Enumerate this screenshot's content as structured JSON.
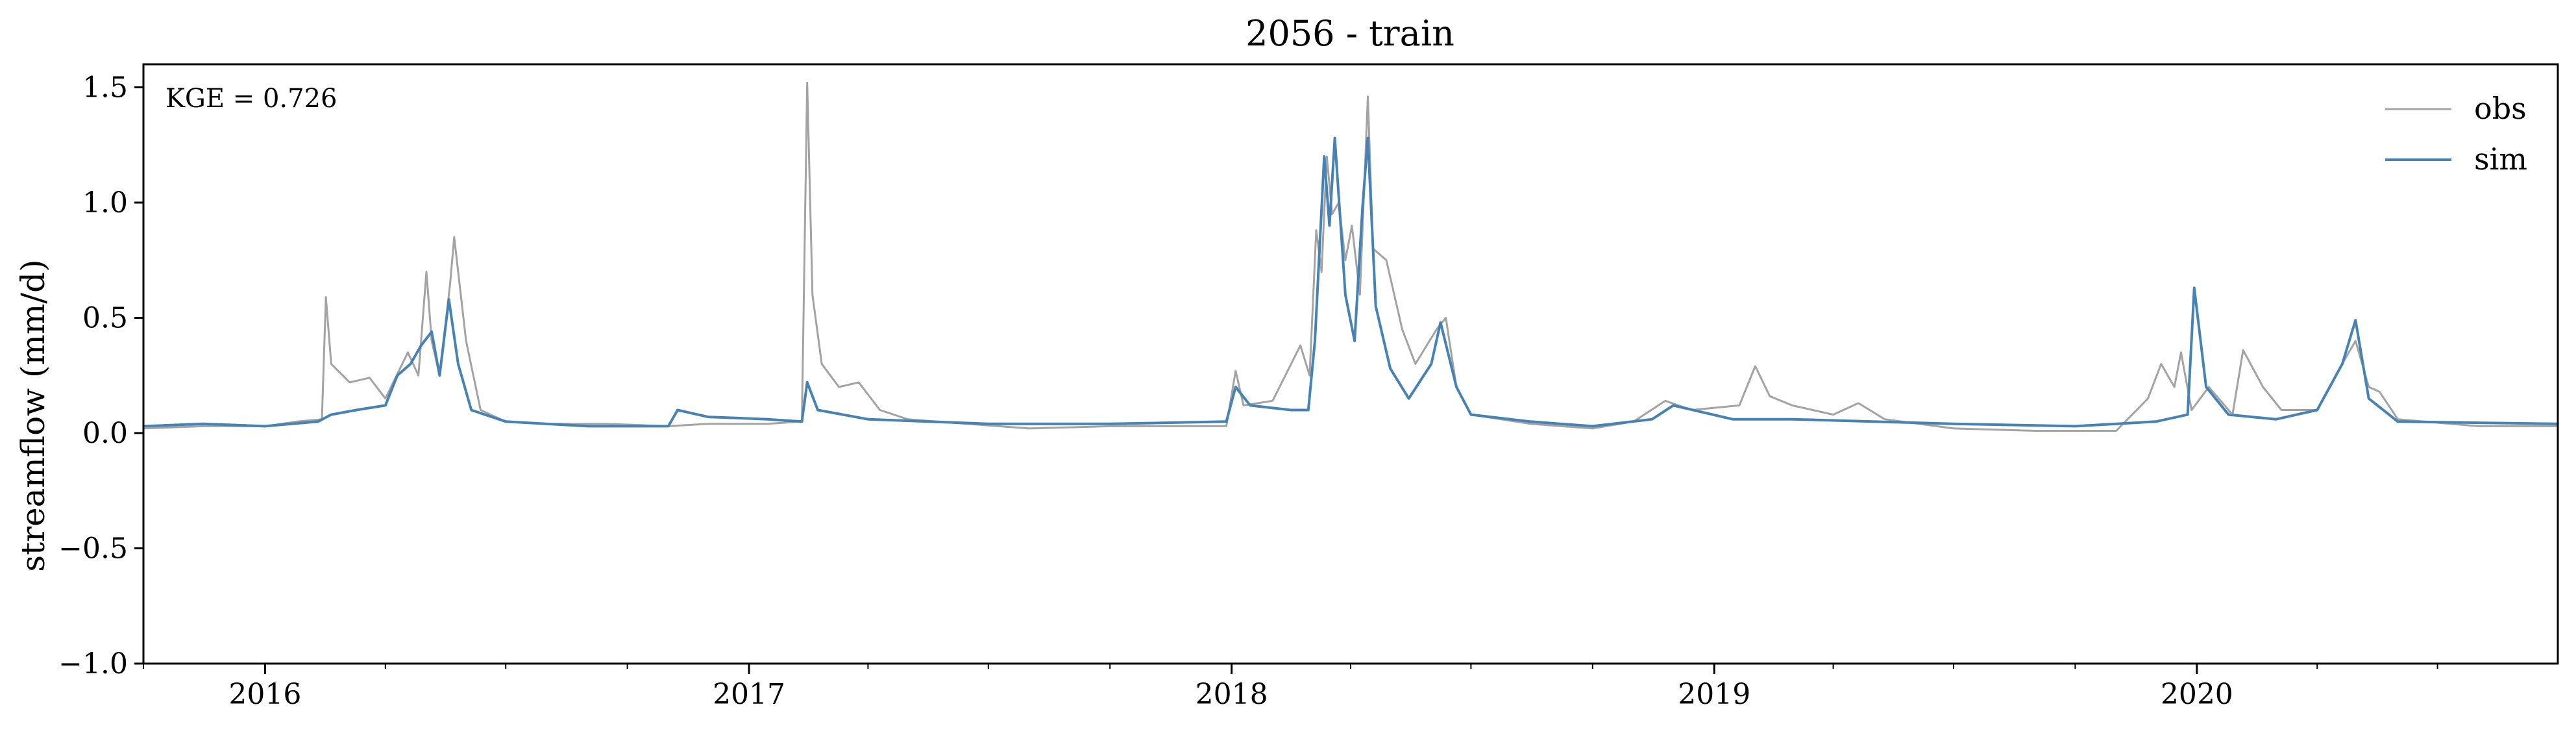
{
  "chart_data": {
    "type": "line",
    "title": "2056 - train",
    "xlabel": "",
    "ylabel": "streamflow (mm/d)",
    "ylim": [
      -1.0,
      1.6
    ],
    "xlim": [
      "2015-10-01",
      "2020-09-30"
    ],
    "y_ticks": [
      -1.0,
      -0.5,
      0.0,
      0.5,
      1.0,
      1.5
    ],
    "y_tick_labels": [
      "−1.0",
      "−0.5",
      "0.0",
      "0.5",
      "1.0",
      "1.5"
    ],
    "x_tick_labels": [
      "2016",
      "2017",
      "2018",
      "2019",
      "2020"
    ],
    "x_ticks": [
      "2016-01-01",
      "2017-01-01",
      "2018-01-01",
      "2019-01-01",
      "2020-01-01"
    ],
    "grid": false,
    "legend": {
      "placement": "top-right",
      "entries": [
        "obs",
        "sim"
      ]
    },
    "annotation": "KGE = 0.726",
    "series": [
      {
        "name": "obs",
        "color": "#a3a3a3",
        "points": [
          [
            "2015-10-01",
            0.02
          ],
          [
            "2015-11-15",
            0.03
          ],
          [
            "2016-01-01",
            0.03
          ],
          [
            "2016-01-25",
            0.05
          ],
          [
            "2016-02-13",
            0.06
          ],
          [
            "2016-02-16",
            0.59
          ],
          [
            "2016-02-20",
            0.3
          ],
          [
            "2016-03-05",
            0.22
          ],
          [
            "2016-03-20",
            0.24
          ],
          [
            "2016-04-01",
            0.15
          ],
          [
            "2016-04-18",
            0.35
          ],
          [
            "2016-04-26",
            0.25
          ],
          [
            "2016-05-02",
            0.7
          ],
          [
            "2016-05-06",
            0.4
          ],
          [
            "2016-05-12",
            0.25
          ],
          [
            "2016-05-20",
            0.65
          ],
          [
            "2016-05-23",
            0.85
          ],
          [
            "2016-06-01",
            0.4
          ],
          [
            "2016-06-12",
            0.1
          ],
          [
            "2016-07-01",
            0.05
          ],
          [
            "2016-08-01",
            0.04
          ],
          [
            "2016-09-15",
            0.04
          ],
          [
            "2016-11-01",
            0.03
          ],
          [
            "2016-12-01",
            0.04
          ],
          [
            "2017-01-15",
            0.04
          ],
          [
            "2017-02-10",
            0.05
          ],
          [
            "2017-02-14",
            1.52
          ],
          [
            "2017-02-18",
            0.6
          ],
          [
            "2017-02-25",
            0.3
          ],
          [
            "2017-03-10",
            0.2
          ],
          [
            "2017-03-25",
            0.22
          ],
          [
            "2017-04-10",
            0.1
          ],
          [
            "2017-05-01",
            0.06
          ],
          [
            "2017-06-15",
            0.04
          ],
          [
            "2017-08-01",
            0.02
          ],
          [
            "2017-10-01",
            0.03
          ],
          [
            "2017-12-28",
            0.03
          ],
          [
            "2018-01-04",
            0.27
          ],
          [
            "2018-01-10",
            0.12
          ],
          [
            "2018-02-01",
            0.14
          ],
          [
            "2018-02-15",
            0.3
          ],
          [
            "2018-02-22",
            0.38
          ],
          [
            "2018-03-01",
            0.25
          ],
          [
            "2018-03-06",
            0.88
          ],
          [
            "2018-03-10",
            0.7
          ],
          [
            "2018-03-14",
            1.2
          ],
          [
            "2018-03-18",
            0.95
          ],
          [
            "2018-03-23",
            1.0
          ],
          [
            "2018-03-28",
            0.75
          ],
          [
            "2018-04-02",
            0.9
          ],
          [
            "2018-04-08",
            0.6
          ],
          [
            "2018-04-14",
            1.46
          ],
          [
            "2018-04-18",
            0.8
          ],
          [
            "2018-04-28",
            0.75
          ],
          [
            "2018-05-10",
            0.45
          ],
          [
            "2018-05-20",
            0.3
          ],
          [
            "2018-06-05",
            0.45
          ],
          [
            "2018-06-12",
            0.5
          ],
          [
            "2018-06-20",
            0.2
          ],
          [
            "2018-07-01",
            0.08
          ],
          [
            "2018-08-15",
            0.04
          ],
          [
            "2018-10-01",
            0.02
          ],
          [
            "2018-11-01",
            0.05
          ],
          [
            "2018-11-25",
            0.14
          ],
          [
            "2018-12-15",
            0.1
          ],
          [
            "2019-01-20",
            0.12
          ],
          [
            "2019-02-01",
            0.29
          ],
          [
            "2019-02-12",
            0.16
          ],
          [
            "2019-03-01",
            0.12
          ],
          [
            "2019-04-01",
            0.08
          ],
          [
            "2019-04-20",
            0.13
          ],
          [
            "2019-05-10",
            0.06
          ],
          [
            "2019-07-01",
            0.02
          ],
          [
            "2019-09-01",
            0.01
          ],
          [
            "2019-11-01",
            0.01
          ],
          [
            "2019-11-25",
            0.15
          ],
          [
            "2019-12-05",
            0.3
          ],
          [
            "2019-12-15",
            0.2
          ],
          [
            "2019-12-20",
            0.35
          ],
          [
            "2019-12-28",
            0.1
          ],
          [
            "2020-01-10",
            0.2
          ],
          [
            "2020-01-28",
            0.08
          ],
          [
            "2020-02-05",
            0.36
          ],
          [
            "2020-02-20",
            0.2
          ],
          [
            "2020-03-05",
            0.1
          ],
          [
            "2020-04-01",
            0.1
          ],
          [
            "2020-04-20",
            0.3
          ],
          [
            "2020-04-30",
            0.4
          ],
          [
            "2020-05-10",
            0.2
          ],
          [
            "2020-05-18",
            0.18
          ],
          [
            "2020-06-01",
            0.06
          ],
          [
            "2020-08-01",
            0.03
          ],
          [
            "2020-09-30",
            0.03
          ]
        ]
      },
      {
        "name": "sim",
        "color": "#4682b4",
        "points": [
          [
            "2015-10-01",
            0.03
          ],
          [
            "2015-11-15",
            0.04
          ],
          [
            "2016-01-01",
            0.03
          ],
          [
            "2016-02-10",
            0.05
          ],
          [
            "2016-02-20",
            0.08
          ],
          [
            "2016-03-10",
            0.1
          ],
          [
            "2016-04-01",
            0.12
          ],
          [
            "2016-04-10",
            0.25
          ],
          [
            "2016-04-20",
            0.3
          ],
          [
            "2016-04-28",
            0.38
          ],
          [
            "2016-05-06",
            0.44
          ],
          [
            "2016-05-12",
            0.25
          ],
          [
            "2016-05-19",
            0.58
          ],
          [
            "2016-05-26",
            0.3
          ],
          [
            "2016-06-05",
            0.1
          ],
          [
            "2016-07-01",
            0.05
          ],
          [
            "2016-09-01",
            0.03
          ],
          [
            "2016-11-01",
            0.03
          ],
          [
            "2016-11-08",
            0.1
          ],
          [
            "2016-12-01",
            0.07
          ],
          [
            "2017-01-15",
            0.06
          ],
          [
            "2017-02-10",
            0.05
          ],
          [
            "2017-02-14",
            0.22
          ],
          [
            "2017-02-22",
            0.1
          ],
          [
            "2017-04-01",
            0.06
          ],
          [
            "2017-07-01",
            0.04
          ],
          [
            "2017-10-01",
            0.04
          ],
          [
            "2017-12-28",
            0.05
          ],
          [
            "2018-01-04",
            0.2
          ],
          [
            "2018-01-15",
            0.12
          ],
          [
            "2018-02-15",
            0.1
          ],
          [
            "2018-02-28",
            0.1
          ],
          [
            "2018-03-05",
            0.4
          ],
          [
            "2018-03-12",
            1.2
          ],
          [
            "2018-03-16",
            0.9
          ],
          [
            "2018-03-20",
            1.28
          ],
          [
            "2018-03-28",
            0.6
          ],
          [
            "2018-04-04",
            0.4
          ],
          [
            "2018-04-10",
            0.98
          ],
          [
            "2018-04-14",
            1.28
          ],
          [
            "2018-04-20",
            0.55
          ],
          [
            "2018-05-01",
            0.28
          ],
          [
            "2018-05-15",
            0.15
          ],
          [
            "2018-06-01",
            0.3
          ],
          [
            "2018-06-08",
            0.48
          ],
          [
            "2018-06-20",
            0.2
          ],
          [
            "2018-07-01",
            0.08
          ],
          [
            "2018-08-15",
            0.05
          ],
          [
            "2018-10-01",
            0.03
          ],
          [
            "2018-11-15",
            0.06
          ],
          [
            "2018-12-01",
            0.12
          ],
          [
            "2019-01-15",
            0.06
          ],
          [
            "2019-03-01",
            0.06
          ],
          [
            "2019-05-01",
            0.05
          ],
          [
            "2019-07-01",
            0.04
          ],
          [
            "2019-10-01",
            0.03
          ],
          [
            "2019-12-01",
            0.05
          ],
          [
            "2019-12-25",
            0.08
          ],
          [
            "2019-12-30",
            0.63
          ],
          [
            "2020-01-08",
            0.2
          ],
          [
            "2020-01-25",
            0.08
          ],
          [
            "2020-03-01",
            0.06
          ],
          [
            "2020-04-01",
            0.1
          ],
          [
            "2020-04-20",
            0.3
          ],
          [
            "2020-04-30",
            0.49
          ],
          [
            "2020-05-10",
            0.15
          ],
          [
            "2020-06-01",
            0.05
          ],
          [
            "2020-09-30",
            0.04
          ]
        ]
      }
    ]
  }
}
